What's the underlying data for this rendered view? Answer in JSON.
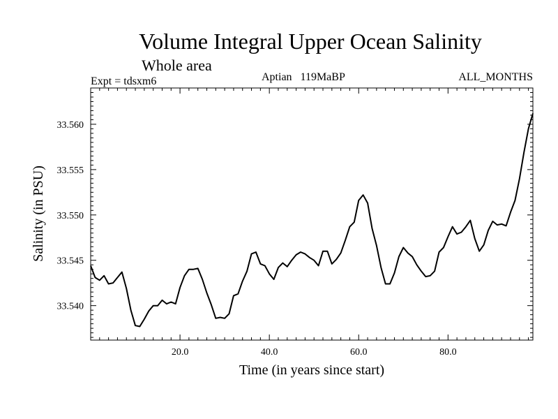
{
  "chart_data": {
    "type": "line",
    "title": "Volume Integral Upper Ocean Salinity",
    "subtitle": "Whole area",
    "expt_label": "Expt = tdsxm6",
    "period_label": "Aptian   119MaBP",
    "months_label": "ALL_MONTHS",
    "xlabel": "Time (in years since start)",
    "ylabel": "Salinity (in PSU)",
    "xlim": [
      0,
      99
    ],
    "ylim": [
      33.5362,
      33.564
    ],
    "x_ticks": [
      20,
      40,
      60,
      80
    ],
    "x_tick_labels": [
      "20.0",
      "40.0",
      "60.0",
      "80.0"
    ],
    "y_ticks": [
      33.54,
      33.545,
      33.55,
      33.555,
      33.56
    ],
    "y_tick_labels": [
      "33.540",
      "33.545",
      "33.550",
      "33.555",
      "33.560"
    ],
    "line_color": "#000000",
    "series": [
      {
        "name": "salinity",
        "x": [
          0,
          1,
          2,
          3,
          4,
          5,
          6,
          7,
          8,
          9,
          10,
          11,
          12,
          13,
          14,
          15,
          16,
          17,
          18,
          19,
          20,
          21,
          22,
          23,
          24,
          25,
          26,
          27,
          28,
          29,
          30,
          31,
          32,
          33,
          34,
          35,
          36,
          37,
          38,
          39,
          40,
          41,
          42,
          43,
          44,
          45,
          46,
          47,
          48,
          49,
          50,
          51,
          52,
          53,
          54,
          55,
          56,
          57,
          58,
          59,
          60,
          61,
          62,
          63,
          64,
          65,
          66,
          67,
          68,
          69,
          70,
          71,
          72,
          73,
          74,
          75,
          76,
          77,
          78,
          79,
          80,
          81,
          82,
          83,
          84,
          85,
          86,
          87,
          88,
          89,
          90,
          91,
          92,
          93,
          94,
          95,
          96,
          97,
          98,
          99
        ],
        "values": [
          33.5444,
          33.5431,
          33.5428,
          33.5433,
          33.5424,
          33.5425,
          33.5431,
          33.5437,
          33.5419,
          33.5395,
          33.5378,
          33.5377,
          33.5385,
          33.5394,
          33.54,
          33.54,
          33.5406,
          33.5402,
          33.5404,
          33.5402,
          33.542,
          33.5433,
          33.544,
          33.544,
          33.5441,
          33.5429,
          33.5414,
          33.5401,
          33.5386,
          33.5387,
          33.5386,
          33.5391,
          33.5411,
          33.5413,
          33.5427,
          33.5438,
          33.5457,
          33.5459,
          33.5446,
          33.5444,
          33.5435,
          33.5429,
          33.5442,
          33.5447,
          33.5443,
          33.545,
          33.5456,
          33.5459,
          33.5457,
          33.5453,
          33.545,
          33.5444,
          33.546,
          33.546,
          33.5446,
          33.5451,
          33.5458,
          33.5472,
          33.5487,
          33.5492,
          33.5516,
          33.5522,
          33.5513,
          33.5485,
          33.5466,
          33.5442,
          33.5424,
          33.5424,
          33.5436,
          33.5454,
          33.5464,
          33.5458,
          33.5454,
          33.5445,
          33.5438,
          33.5432,
          33.5433,
          33.5438,
          33.5459,
          33.5464,
          33.5476,
          33.5487,
          33.5479,
          33.5481,
          33.5487,
          33.5494,
          33.5474,
          33.546,
          33.5467,
          33.5483,
          33.5493,
          33.5489,
          33.549,
          33.5488,
          33.5503,
          33.5516,
          33.554,
          33.5569,
          33.5595,
          33.5612
        ]
      }
    ]
  }
}
